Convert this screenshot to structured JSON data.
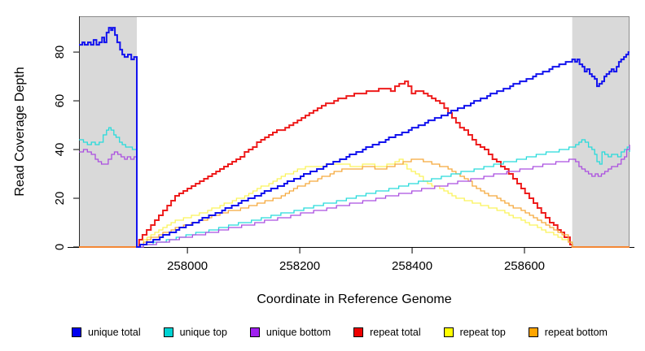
{
  "chart_data": {
    "type": "line",
    "title": "",
    "xlabel": "Coordinate in Reference Genome",
    "ylabel": "Read Coverage Depth",
    "xlim": [
      257807,
      258787
    ],
    "ylim": [
      0,
      94.7
    ],
    "x_ticks": [
      258000,
      258200,
      258400,
      258600
    ],
    "y_ticks": [
      0,
      20,
      40,
      60,
      80
    ],
    "grid": false,
    "interpolation": "step",
    "legend_position": "bottom",
    "shaded_regions": [
      {
        "x0": 257807,
        "x1": 257910,
        "color": "#d9d9d9"
      },
      {
        "x0": 258685,
        "x1": 258787,
        "color": "#d9d9d9"
      }
    ],
    "draw_order": [
      "repeat total",
      "repeat top",
      "repeat bottom",
      "unique top",
      "unique bottom",
      "unique total"
    ],
    "series": [
      {
        "name": "unique total",
        "color": "#1313ee",
        "width": 2,
        "points": [
          [
            257807,
            83
          ],
          [
            257813,
            84
          ],
          [
            257817,
            83
          ],
          [
            257823,
            84
          ],
          [
            257828,
            83
          ],
          [
            257833,
            85
          ],
          [
            257838,
            83
          ],
          [
            257843,
            84
          ],
          [
            257848,
            86
          ],
          [
            257852,
            84
          ],
          [
            257856,
            88
          ],
          [
            257860,
            90
          ],
          [
            257864,
            89
          ],
          [
            257867,
            90
          ],
          [
            257871,
            87
          ],
          [
            257875,
            84
          ],
          [
            257880,
            81
          ],
          [
            257884,
            79
          ],
          [
            257888,
            78
          ],
          [
            257894,
            79
          ],
          [
            257900,
            77
          ],
          [
            257905,
            78
          ],
          [
            257910,
            0
          ],
          [
            258685,
            77
          ],
          [
            258690,
            76
          ],
          [
            258694,
            77
          ],
          [
            258698,
            75
          ],
          [
            258703,
            74
          ],
          [
            258707,
            72
          ],
          [
            258711,
            73
          ],
          [
            258716,
            71
          ],
          [
            258720,
            70
          ],
          [
            258725,
            69
          ],
          [
            258729,
            66
          ],
          [
            258733,
            67
          ],
          [
            258738,
            68
          ],
          [
            258742,
            70
          ],
          [
            258746,
            71
          ],
          [
            258751,
            72
          ],
          [
            258755,
            73
          ],
          [
            258759,
            72
          ],
          [
            258764,
            74
          ],
          [
            258768,
            76
          ],
          [
            258772,
            77
          ],
          [
            258777,
            78
          ],
          [
            258781,
            79
          ],
          [
            258785,
            80
          ],
          [
            258787,
            80
          ]
        ]
      },
      {
        "name": "unique top",
        "color": "#27dbdb",
        "width": 1.3,
        "points": [
          [
            257807,
            44
          ],
          [
            257815,
            43
          ],
          [
            257822,
            42
          ],
          [
            257829,
            43
          ],
          [
            257836,
            42
          ],
          [
            257843,
            43
          ],
          [
            257850,
            46
          ],
          [
            257856,
            48
          ],
          [
            257860,
            49
          ],
          [
            257864,
            48
          ],
          [
            257869,
            46
          ],
          [
            257873,
            45
          ],
          [
            257879,
            43
          ],
          [
            257884,
            42
          ],
          [
            257890,
            41
          ],
          [
            257896,
            41
          ],
          [
            257902,
            40
          ],
          [
            257910,
            0
          ],
          [
            258685,
            41
          ],
          [
            258691,
            42
          ],
          [
            258697,
            43
          ],
          [
            258702,
            44
          ],
          [
            258708,
            43
          ],
          [
            258714,
            41
          ],
          [
            258720,
            40
          ],
          [
            258725,
            38
          ],
          [
            258729,
            35
          ],
          [
            258734,
            34
          ],
          [
            258738,
            39
          ],
          [
            258743,
            38
          ],
          [
            258749,
            37
          ],
          [
            258755,
            38
          ],
          [
            258761,
            38
          ],
          [
            258766,
            37
          ],
          [
            258772,
            39
          ],
          [
            258778,
            40
          ],
          [
            258783,
            41
          ],
          [
            258787,
            39
          ]
        ]
      },
      {
        "name": "unique bottom",
        "color": "#ab4fe0",
        "width": 1.3,
        "points": [
          [
            257807,
            39
          ],
          [
            257815,
            40
          ],
          [
            257822,
            39
          ],
          [
            257829,
            38
          ],
          [
            257836,
            36
          ],
          [
            257841,
            35
          ],
          [
            257847,
            34
          ],
          [
            257853,
            34
          ],
          [
            257859,
            36
          ],
          [
            257865,
            38
          ],
          [
            257870,
            39
          ],
          [
            257876,
            38
          ],
          [
            257882,
            37
          ],
          [
            257888,
            36
          ],
          [
            257893,
            37
          ],
          [
            257899,
            36
          ],
          [
            257905,
            37
          ],
          [
            257910,
            0
          ],
          [
            258685,
            36
          ],
          [
            258691,
            35
          ],
          [
            258697,
            33
          ],
          [
            258702,
            32
          ],
          [
            258708,
            31
          ],
          [
            258714,
            30
          ],
          [
            258720,
            29
          ],
          [
            258726,
            30
          ],
          [
            258731,
            29
          ],
          [
            258737,
            30
          ],
          [
            258743,
            31
          ],
          [
            258749,
            32
          ],
          [
            258755,
            33
          ],
          [
            258761,
            33
          ],
          [
            258766,
            34
          ],
          [
            258772,
            36
          ],
          [
            258778,
            37
          ],
          [
            258782,
            40
          ],
          [
            258787,
            42
          ]
        ]
      },
      {
        "name": "repeat total",
        "color": "#ee1c1c",
        "width": 2,
        "points": [
          [
            257807,
            0
          ],
          [
            257910,
            0
          ],
          [
            257914,
            3
          ],
          [
            257920,
            5
          ],
          [
            257935,
            9
          ],
          [
            257949,
            13
          ],
          [
            257964,
            17
          ],
          [
            257978,
            21
          ],
          [
            258000,
            24
          ],
          [
            258022,
            27
          ],
          [
            258044,
            30
          ],
          [
            258065,
            33
          ],
          [
            258087,
            36
          ],
          [
            258109,
            40
          ],
          [
            258131,
            44
          ],
          [
            258152,
            47
          ],
          [
            258174,
            49
          ],
          [
            258196,
            52
          ],
          [
            258217,
            55
          ],
          [
            258239,
            58
          ],
          [
            258261,
            60
          ],
          [
            258283,
            62
          ],
          [
            258304,
            63
          ],
          [
            258326,
            64
          ],
          [
            258348,
            65
          ],
          [
            258362,
            64
          ],
          [
            258377,
            67
          ],
          [
            258387,
            68
          ],
          [
            258399,
            63
          ],
          [
            258413,
            64
          ],
          [
            258428,
            62
          ],
          [
            258442,
            60
          ],
          [
            258457,
            57
          ],
          [
            258471,
            53
          ],
          [
            258485,
            49
          ],
          [
            258500,
            46
          ],
          [
            258514,
            42
          ],
          [
            258529,
            40
          ],
          [
            258543,
            36
          ],
          [
            258558,
            33
          ],
          [
            258572,
            30
          ],
          [
            258587,
            26
          ],
          [
            258601,
            22
          ],
          [
            258616,
            18
          ],
          [
            258630,
            14
          ],
          [
            258645,
            10
          ],
          [
            258659,
            7
          ],
          [
            258671,
            4
          ],
          [
            258681,
            1
          ],
          [
            258685,
            0
          ],
          [
            258787,
            0
          ]
        ]
      },
      {
        "name": "repeat top",
        "color": "#fbf35a",
        "width": 1.3,
        "points": [
          [
            257807,
            0
          ],
          [
            257910,
            0
          ],
          [
            257928,
            4
          ],
          [
            257949,
            7
          ],
          [
            257971,
            10
          ],
          [
            257993,
            12
          ],
          [
            258014,
            13
          ],
          [
            258036,
            15
          ],
          [
            258058,
            17
          ],
          [
            258080,
            19
          ],
          [
            258102,
            21
          ],
          [
            258124,
            24
          ],
          [
            258145,
            26
          ],
          [
            258167,
            29
          ],
          [
            258189,
            31
          ],
          [
            258210,
            33
          ],
          [
            258232,
            33
          ],
          [
            258254,
            34
          ],
          [
            258275,
            34
          ],
          [
            258297,
            33
          ],
          [
            258319,
            34
          ],
          [
            258341,
            33
          ],
          [
            258362,
            34
          ],
          [
            258377,
            36
          ],
          [
            258391,
            32
          ],
          [
            258406,
            30
          ],
          [
            258420,
            27
          ],
          [
            258435,
            25
          ],
          [
            258449,
            24
          ],
          [
            258464,
            22
          ],
          [
            258478,
            20
          ],
          [
            258493,
            19
          ],
          [
            258507,
            18
          ],
          [
            258522,
            17
          ],
          [
            258536,
            16
          ],
          [
            258551,
            15
          ],
          [
            258565,
            14
          ],
          [
            258580,
            12
          ],
          [
            258594,
            11
          ],
          [
            258609,
            9
          ],
          [
            258623,
            8
          ],
          [
            258638,
            6
          ],
          [
            258652,
            5
          ],
          [
            258667,
            3
          ],
          [
            258678,
            2
          ],
          [
            258685,
            0
          ],
          [
            258787,
            0
          ]
        ]
      },
      {
        "name": "repeat bottom",
        "color": "#f5a93c",
        "width": 1.3,
        "points": [
          [
            257807,
            0
          ],
          [
            257910,
            0
          ],
          [
            257928,
            3
          ],
          [
            257949,
            5
          ],
          [
            257971,
            7
          ],
          [
            257993,
            9
          ],
          [
            258014,
            10
          ],
          [
            258036,
            12
          ],
          [
            258058,
            14
          ],
          [
            258080,
            15
          ],
          [
            258102,
            16
          ],
          [
            258124,
            18
          ],
          [
            258145,
            19
          ],
          [
            258167,
            21
          ],
          [
            258189,
            24
          ],
          [
            258210,
            26
          ],
          [
            258232,
            28
          ],
          [
            258254,
            30
          ],
          [
            258275,
            32
          ],
          [
            258297,
            32
          ],
          [
            258319,
            33
          ],
          [
            258341,
            32
          ],
          [
            258362,
            33
          ],
          [
            258377,
            34
          ],
          [
            258391,
            35
          ],
          [
            258406,
            36
          ],
          [
            258420,
            35
          ],
          [
            258435,
            34
          ],
          [
            258449,
            33
          ],
          [
            258464,
            32
          ],
          [
            258478,
            30
          ],
          [
            258493,
            28
          ],
          [
            258507,
            25
          ],
          [
            258522,
            23
          ],
          [
            258536,
            21
          ],
          [
            258551,
            20
          ],
          [
            258565,
            18
          ],
          [
            258580,
            16
          ],
          [
            258594,
            15
          ],
          [
            258609,
            13
          ],
          [
            258623,
            11
          ],
          [
            258638,
            9
          ],
          [
            258652,
            7
          ],
          [
            258667,
            5
          ],
          [
            258678,
            2
          ],
          [
            258685,
            0
          ],
          [
            258787,
            0
          ]
        ]
      }
    ],
    "legend": [
      {
        "label": "unique total",
        "color": "#0000ee"
      },
      {
        "label": "unique top",
        "color": "#00d3d3"
      },
      {
        "label": "unique bottom",
        "color": "#a020f0"
      },
      {
        "label": "repeat total",
        "color": "#ee0000"
      },
      {
        "label": "repeat top",
        "color": "#ffff00"
      },
      {
        "label": "repeat bottom",
        "color": "#ffa500"
      }
    ]
  }
}
